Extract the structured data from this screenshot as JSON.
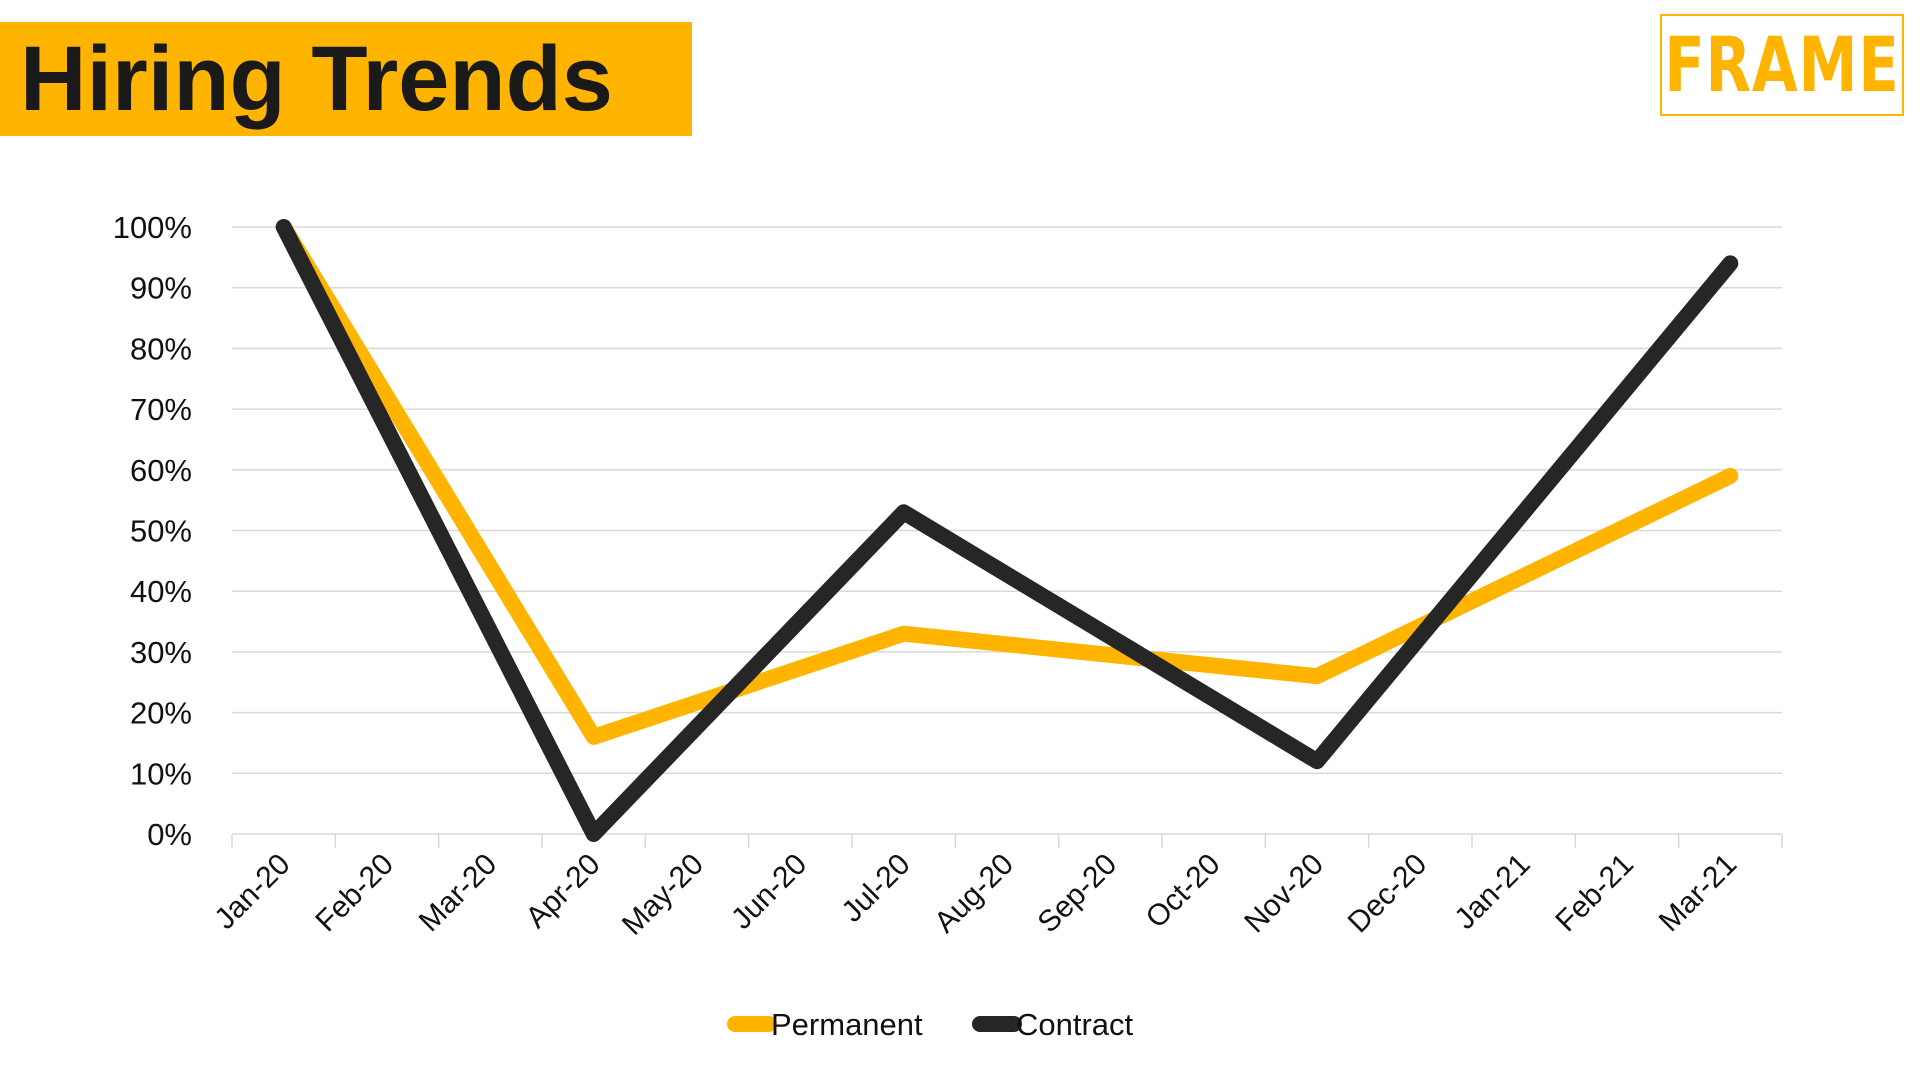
{
  "header": {
    "title": "Hiring Trends",
    "logo_text": "FRAME"
  },
  "colors": {
    "accent": "#FFB400",
    "permanent": "#FFB400",
    "contract": "#262626",
    "grid": "#d9d9d9"
  },
  "chart_data": {
    "type": "line",
    "categories": [
      "Jan-20",
      "Feb-20",
      "Mar-20",
      "Apr-20",
      "May-20",
      "Jun-20",
      "Jul-20",
      "Aug-20",
      "Sep-20",
      "Oct-20",
      "Nov-20",
      "Dec-20",
      "Jan-21",
      "Feb-21",
      "Mar-21"
    ],
    "series": [
      {
        "name": "Permanent",
        "values": [
          100,
          null,
          null,
          16,
          null,
          null,
          33,
          null,
          null,
          null,
          26,
          null,
          null,
          null,
          59
        ]
      },
      {
        "name": "Contract",
        "values": [
          100,
          null,
          null,
          0,
          null,
          null,
          53,
          null,
          null,
          null,
          12,
          null,
          null,
          null,
          94
        ]
      }
    ],
    "y_ticks": [
      "0%",
      "10%",
      "20%",
      "30%",
      "40%",
      "50%",
      "60%",
      "70%",
      "80%",
      "90%",
      "100%"
    ],
    "ylim": [
      0,
      100
    ],
    "grid": true,
    "legend_position": "bottom",
    "xlabel": "",
    "ylabel": ""
  }
}
